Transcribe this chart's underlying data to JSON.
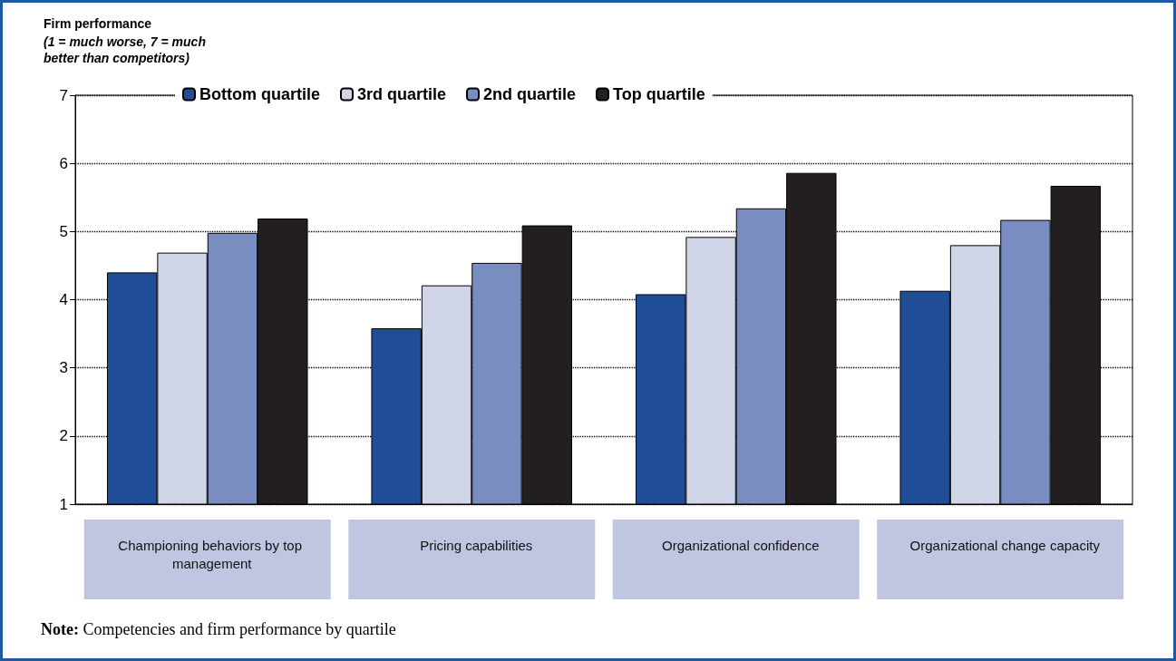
{
  "chart_data": {
    "type": "bar",
    "ylabel": "Firm performance",
    "subtitle": "(1 = much worse, 7 = much better than competitors)",
    "categories": [
      "Championing behaviors by top management",
      "Pricing capabilities",
      "Organizational confidence",
      "Organizational change capacity"
    ],
    "series": [
      {
        "name": "Bottom quartile",
        "color": "#1f4e96",
        "values": [
          4.4,
          3.58,
          4.08,
          4.13
        ]
      },
      {
        "name": "3rd quartile",
        "color": "#d0d5e8",
        "values": [
          4.69,
          4.21,
          4.92,
          4.8
        ]
      },
      {
        "name": "2nd quartile",
        "color": "#7a8dc0",
        "values": [
          4.98,
          4.54,
          5.34,
          5.17
        ]
      },
      {
        "name": "Top quartile",
        "color": "#231f20",
        "values": [
          5.19,
          5.09,
          5.86,
          5.67
        ]
      }
    ],
    "ylim": [
      1,
      7
    ],
    "yticks": [
      1,
      2,
      3,
      4,
      5,
      6,
      7
    ],
    "grid": "y",
    "legend": "top",
    "annotations": [
      "Note: Competencies and firm performance by quartile"
    ]
  }
}
